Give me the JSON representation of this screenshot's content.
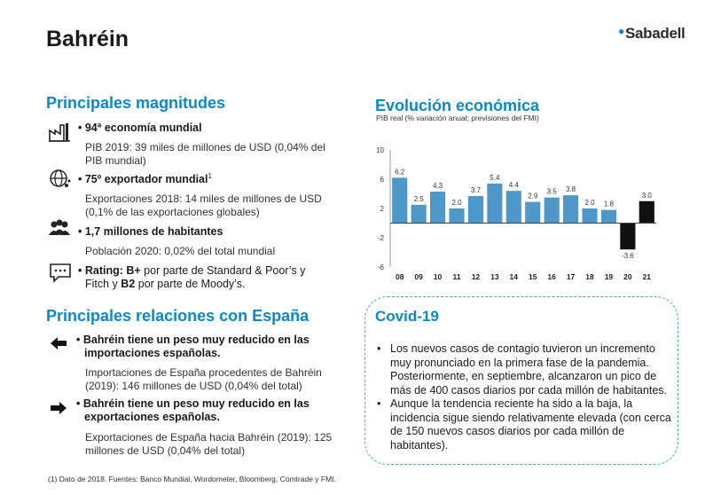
{
  "page": {
    "title": "Bahréin",
    "logo_text": "Sabadell",
    "footnote": "(1) Dato de 2018. Fuentes: Banco Mundial, Wordometer, Bloomberg, Comtrade y FMI."
  },
  "magnitudes": {
    "heading": "Principales magnitudes",
    "items": [
      {
        "icon": "factory-icon",
        "title": "• 94ª economía mundial",
        "sup": "",
        "lines": [
          "PIB 2019: 39 miles de millones de USD (0,04% del",
          "PIB mundial)"
        ]
      },
      {
        "icon": "globe-network-icon",
        "title": "• 75º exportador mundial",
        "sup": "1",
        "lines": [
          "Exportaciones 2018: 14 miles de millones de USD",
          "(0,1% de las exportaciones globales)"
        ]
      },
      {
        "icon": "people-icon",
        "title": "• 1,7 millones de habitantes",
        "sup": "",
        "lines": [
          "Población 2020: 0,02% del total mundial"
        ]
      },
      {
        "icon": "speech-bubble-icon",
        "rating_prefix": "• Rating: ",
        "rating_sp": "B+",
        "rating_mid": " por parte de Standard & Poor’s y",
        "rating_line2_a": "Fitch y ",
        "rating_moody": "B2",
        "rating_line2_b": " por parte de Moody’s."
      }
    ]
  },
  "relaciones": {
    "heading": "Principales relaciones con España",
    "items": [
      {
        "icon": "arrow-left-icon",
        "title_lines": [
          "• Bahréin tiene un peso muy reducido en las",
          "importaciones españolas."
        ],
        "lines": [
          "Importaciones de España procedentes de Bahréin",
          "(2019): 146 millones de USD (0,04% del total)"
        ]
      },
      {
        "icon": "arrow-right-icon",
        "title_lines": [
          "• Bahréin tiene un peso muy reducido en las",
          "exportaciones españolas."
        ],
        "lines": [
          "Exportaciones de España hacia Bahréin (2019): 125",
          "millones de USD (0,04% del total)"
        ]
      }
    ]
  },
  "chart_data": {
    "type": "bar",
    "title": "Evolución económica",
    "subtitle": "PIB real (% variación anual; previsiones del FMI)",
    "categories": [
      "08",
      "09",
      "10",
      "11",
      "12",
      "13",
      "14",
      "15",
      "16",
      "17",
      "18",
      "19",
      "20",
      "21"
    ],
    "values": [
      6.2,
      2.5,
      4.3,
      2.0,
      3.7,
      5.4,
      4.4,
      2.9,
      3.5,
      3.8,
      2.0,
      1.8,
      -3.6,
      3.0
    ],
    "value_labels": [
      "6.2",
      "2.5",
      "4.3",
      "2.0",
      "3.7",
      "5.4",
      "4.4",
      "2.9",
      "3.5",
      "3.8",
      "2.0",
      "1.8",
      "-3.6",
      "3.0"
    ],
    "forecast_from_index": 12,
    "ylim": [
      -6,
      10
    ],
    "yticks": [
      "10",
      "6",
      "2",
      "-2",
      "-6"
    ],
    "ytick_values": [
      10,
      6,
      2,
      -2,
      -6
    ],
    "grid": false,
    "xlabel": "",
    "ylabel": "",
    "colors": {
      "historic": "#4e97c9",
      "forecast": "#111111"
    }
  },
  "covid": {
    "title": "Covid-19",
    "bullets": [
      "Los nuevos casos de contagio tuvieron un incremento muy pronunciado en la primera fase de la pandemia. Posteriormente, en septiembre, alcanzaron un pico de más de 400 casos diarios por cada millón de habitantes.",
      "Aunque la tendencia reciente ha sido a la baja, la incidencia sigue siendo relativamente elevada (con cerca de 150 nuevos casos diarios por cada millón de habitantes)."
    ]
  }
}
